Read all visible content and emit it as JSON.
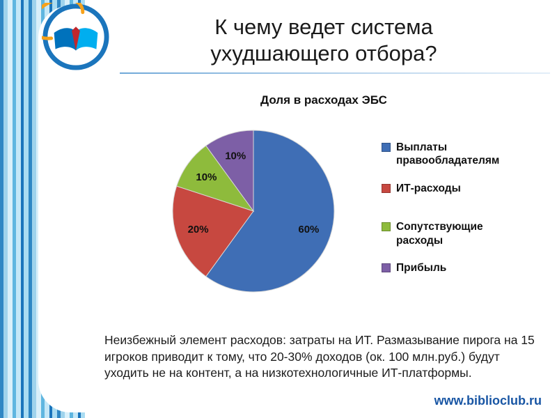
{
  "slide": {
    "title": {
      "line1": "К чему ведет система",
      "line2": "ухудшающего отбора?"
    },
    "body_paragraph": "Неизбежный элемент расходов: затраты на ИТ. Размазывание пирога на 15 игроков приводит к тому, что 20-30% доходов (ок. 100 млн.руб.) будут уходить не на контент, а на низкотехнологичные ИТ-платформы.",
    "footer_url": "www.biblioclub.ru"
  },
  "chart_data": {
    "type": "pie",
    "title": "Доля в расходах ЭБС",
    "slices": [
      {
        "label": "Выплаты правообладателям",
        "value": 60,
        "pct_label": "60%",
        "color": "#3F6EB5"
      },
      {
        "label": "ИТ-расходы",
        "value": 20,
        "pct_label": "20%",
        "color": "#C74840"
      },
      {
        "label": "Сопутствующие расходы",
        "value": 10,
        "pct_label": "10%",
        "color": "#8EBB3C"
      },
      {
        "label": "Прибыль",
        "value": 10,
        "pct_label": "10%",
        "color": "#7D5FA6"
      }
    ],
    "start_angle": "top",
    "direction": "clockwise",
    "legend_position": "right",
    "data_labels": "percent-inside"
  },
  "colors": {
    "accent_blue": "#1B75BC",
    "footer_blue": "#1956A4"
  }
}
